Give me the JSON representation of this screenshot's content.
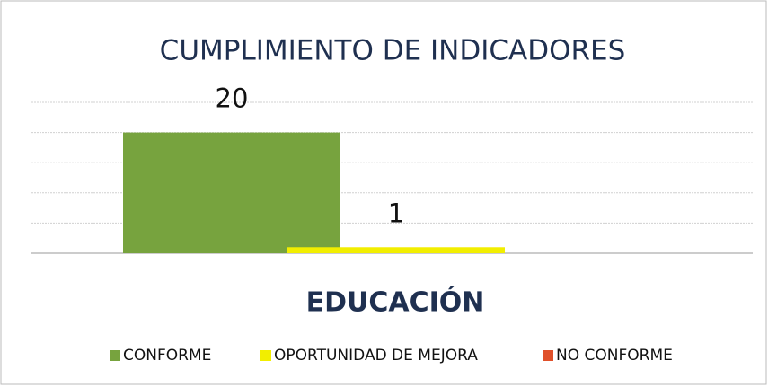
{
  "chart_data": {
    "type": "bar",
    "title": "CUMPLIMIENTO DE INDICADORES",
    "categories": [
      "EDUCACIÓN"
    ],
    "series": [
      {
        "name": "CONFORME",
        "color": "#77a33e",
        "values": [
          20
        ]
      },
      {
        "name": "OPORTUNIDAD DE MEJORA",
        "color": "#f2ee00",
        "values": [
          1
        ]
      },
      {
        "name": "NO CONFORME",
        "color": "#e0502a",
        "values": [
          null
        ]
      }
    ],
    "ylim": [
      0,
      25
    ],
    "yticks": [
      0,
      5,
      10,
      15,
      20,
      25
    ],
    "grid": true,
    "legend": "bottom"
  }
}
